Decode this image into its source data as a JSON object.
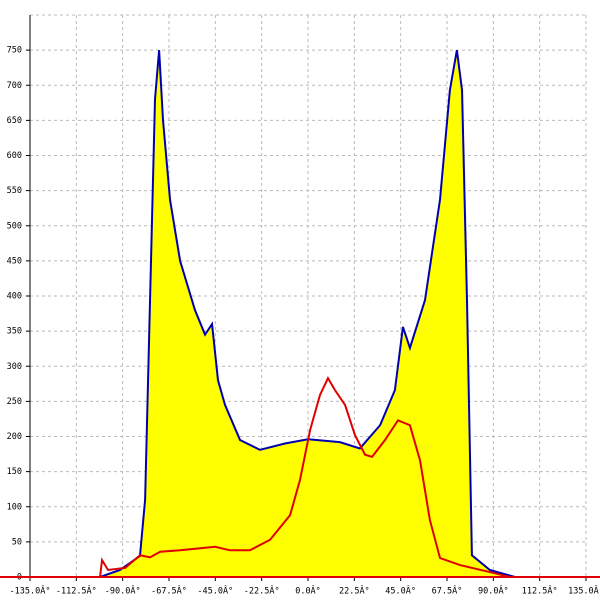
{
  "chart_data": {
    "type": "area",
    "xlim": [
      -135,
      135
    ],
    "ylim": [
      0,
      800
    ],
    "xticks": [
      {
        "value": -135,
        "label": "-135.0Â°"
      },
      {
        "value": -112.5,
        "label": "-112.5Â°"
      },
      {
        "value": -90,
        "label": "-90.0Â°"
      },
      {
        "value": -67.5,
        "label": "-67.5Â°"
      },
      {
        "value": -45,
        "label": "-45.0Â°"
      },
      {
        "value": -22.5,
        "label": "-22.5Â°"
      },
      {
        "value": 0,
        "label": "0.0Â°"
      },
      {
        "value": 22.5,
        "label": "22.5Â°"
      },
      {
        "value": 45,
        "label": "45.0Â°"
      },
      {
        "value": 67.5,
        "label": "67.5Â°"
      },
      {
        "value": 90,
        "label": "90.0Â°"
      },
      {
        "value": 112.5,
        "label": "112.5Â°"
      },
      {
        "value": 135,
        "label": "135.0Â°"
      }
    ],
    "yticks": [
      0,
      50,
      100,
      150,
      200,
      250,
      300,
      350,
      400,
      450,
      500,
      550,
      600,
      650,
      700,
      750
    ],
    "grid": true,
    "series": [
      {
        "color": "#0000b0",
        "fill": "#ffff00",
        "x": [
          -101,
          -91.3,
          -81.6,
          -79.1,
          -76.7,
          -74.3,
          -72.3,
          -70.4,
          -67,
          -62.1,
          -54.9,
          -50,
          -46.6,
          -43.7,
          -40.3,
          -33,
          -23.3,
          -11.2,
          0,
          15.5,
          25.2,
          35,
          42.2,
          46.1,
          49.5,
          56.8,
          64.1,
          68.9,
          72.3,
          74.8,
          77.2,
          79.6,
          88.3,
          100.5
        ],
        "values": [
          0,
          10,
          30,
          110,
          395,
          680,
          750,
          650,
          537,
          450,
          380,
          345,
          360,
          280,
          245,
          195,
          181,
          190,
          196,
          192,
          183,
          216,
          266,
          356,
          326,
          394,
          537,
          693,
          750,
          693,
          395,
          31,
          10,
          0
        ]
      },
      {
        "color": "#e00000",
        "x": [
          -101,
          -100,
          -97.1,
          -88.8,
          -81.6,
          -76.7,
          -71.8,
          -62.1,
          -52.4,
          -45.1,
          -37.9,
          -28.2,
          -18.4,
          -8.7,
          -3.9,
          1,
          5.8,
          9.7,
          13.1,
          18,
          22.8,
          27.7,
          31.1,
          37.4,
          43.7,
          49.5,
          54.4,
          59.2,
          64.1,
          73.8,
          88.3,
          98.1
        ],
        "values": [
          0,
          24,
          10,
          13,
          31,
          28,
          36,
          38,
          41,
          43,
          38,
          38,
          53,
          88,
          138,
          209,
          259,
          283,
          266,
          245,
          202,
          174,
          171,
          195,
          223,
          216,
          166,
          81,
          27,
          17,
          7,
          0
        ]
      }
    ]
  }
}
